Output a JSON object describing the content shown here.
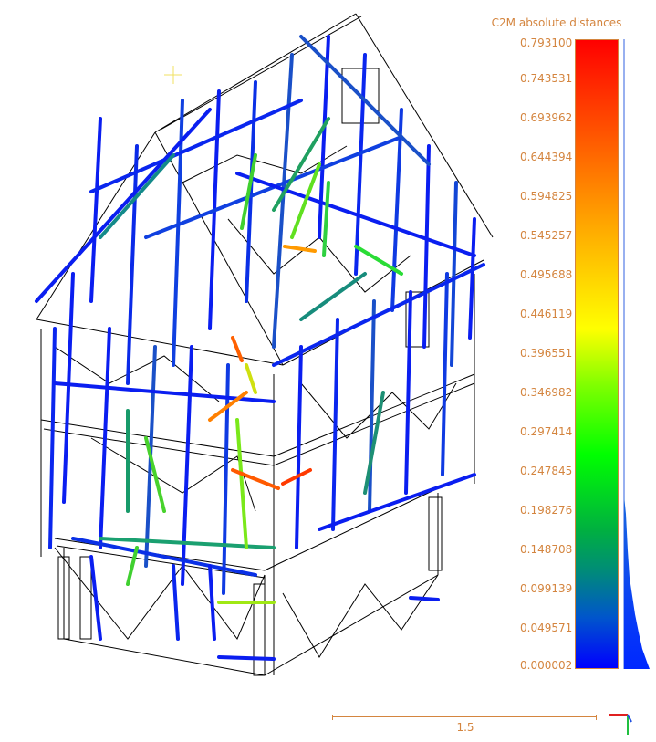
{
  "scalar_field": {
    "title": "C2M absolute distances",
    "labels": [
      "0.793100",
      "0.743531",
      "0.693962",
      "0.644394",
      "0.594825",
      "0.545257",
      "0.495688",
      "0.446119",
      "0.396551",
      "0.346982",
      "0.297414",
      "0.247845",
      "0.198276",
      "0.148708",
      "0.099139",
      "0.049571",
      "0.000002"
    ],
    "colors": [
      "#ff0000",
      "#ffff00",
      "#00ff00",
      "#0000ff"
    ]
  },
  "scale": {
    "label": "1.5"
  },
  "colors": {
    "accent": "#d4853f",
    "model_edge": "#000000"
  }
}
